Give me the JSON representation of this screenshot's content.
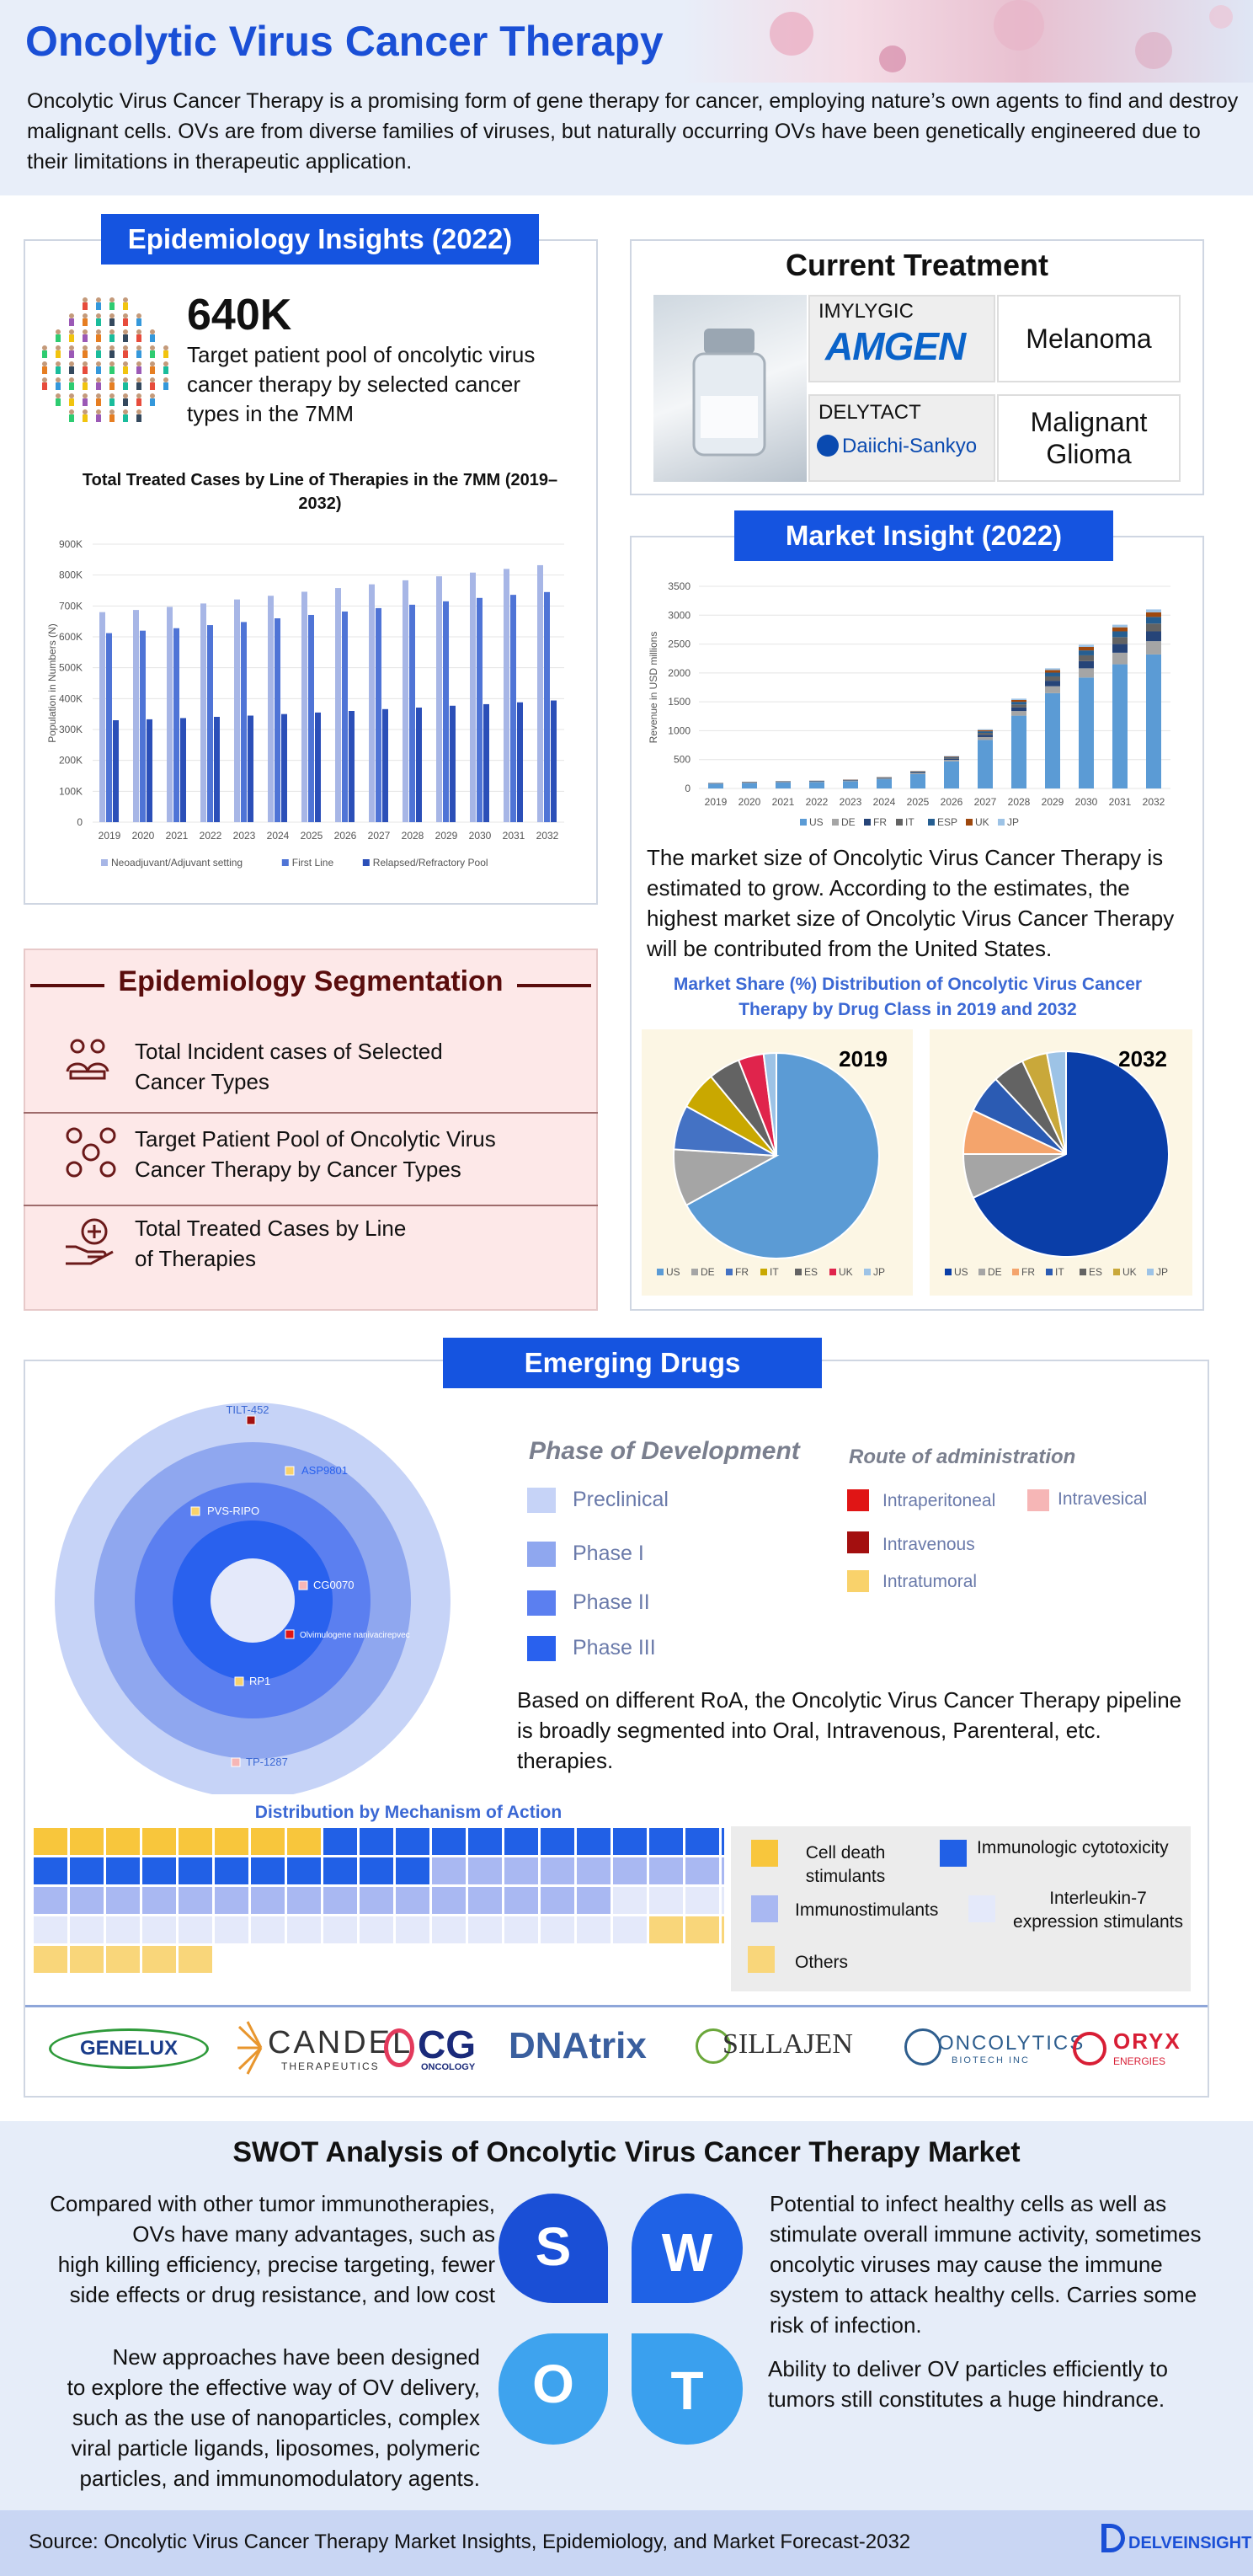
{
  "header": {
    "title": "Oncolytic Virus Cancer Therapy",
    "intro": "Oncolytic Virus Cancer Therapy is a promising form of gene therapy for cancer, employing nature’s own agents to find and destroy malignant cells. OVs are from diverse families of viruses, but naturally occurring OVs have been genetically engineered due to their limitations in therapeutic application."
  },
  "epi": {
    "pill": "Epidemiology Insights (2022)",
    "stat": "640K",
    "stat_desc": "Target patient pool of oncolytic virus cancer therapy by selected cancer types in the 7MM"
  },
  "chart_data": [
    {
      "type": "bar",
      "title": "Total Treated Cases by Line of Therapies in the 7MM (2019–2032)",
      "ylabel": "Population in Numbers (N)",
      "ylim": [
        0,
        900000
      ],
      "yticks": [
        "0",
        "100K",
        "200K",
        "300K",
        "400K",
        "500K",
        "600K",
        "700K",
        "800K",
        "900K"
      ],
      "categories": [
        "2019",
        "2020",
        "2021",
        "2022",
        "2023",
        "2024",
        "2025",
        "2026",
        "2027",
        "2028",
        "2029",
        "2030",
        "2031",
        "2032"
      ],
      "series": [
        {
          "name": "Neoadjuvant/Adjuvant setting",
          "color": "#a7b6e6",
          "values": [
            680000,
            687000,
            697000,
            708000,
            721000,
            733000,
            746000,
            758000,
            770000,
            783000,
            796000,
            808000,
            820000,
            832000
          ]
        },
        {
          "name": "First Line",
          "color": "#4f74d6",
          "values": [
            612000,
            620000,
            628000,
            638000,
            648000,
            660000,
            671000,
            682000,
            693000,
            704000,
            715000,
            726000,
            736000,
            745000
          ]
        },
        {
          "name": "Relapsed/Refractory Pool",
          "color": "#2b4fb8",
          "values": [
            330000,
            333000,
            337000,
            341000,
            345000,
            350000,
            355000,
            360000,
            366000,
            371000,
            377000,
            382000,
            388000,
            394000
          ]
        }
      ]
    },
    {
      "type": "bar",
      "stacked": true,
      "title": "",
      "ylabel": "Revenue in USD millions",
      "ylim": [
        0,
        3500
      ],
      "yticks": [
        "0",
        "500",
        "1000",
        "1500",
        "2000",
        "2500",
        "3000",
        "3500"
      ],
      "categories": [
        "2019",
        "2020",
        "2021",
        "2022",
        "2023",
        "2024",
        "2025",
        "2026",
        "2027",
        "2028",
        "2029",
        "2030",
        "2031",
        "2032"
      ],
      "series": [
        {
          "name": "US",
          "color": "#5b9bd5",
          "values": [
            80,
            95,
            105,
            110,
            125,
            160,
            250,
            470,
            840,
            1260,
            1650,
            1920,
            2150,
            2320
          ]
        },
        {
          "name": "DE",
          "color": "#a5a5a5",
          "values": [
            5,
            6,
            7,
            7,
            8,
            10,
            14,
            25,
            50,
            80,
            120,
            160,
            200,
            230
          ]
        },
        {
          "name": "FR",
          "color": "#264478",
          "values": [
            4,
            5,
            5,
            6,
            6,
            8,
            11,
            20,
            40,
            65,
            95,
            125,
            150,
            170
          ]
        },
        {
          "name": "IT",
          "color": "#636363",
          "values": [
            3,
            4,
            4,
            5,
            5,
            7,
            9,
            16,
            32,
            50,
            75,
            100,
            120,
            135
          ]
        },
        {
          "name": "ESP",
          "color": "#255e91",
          "values": [
            3,
            3,
            4,
            4,
            5,
            6,
            8,
            14,
            28,
            45,
            65,
            85,
            100,
            115
          ]
        },
        {
          "name": "UK",
          "color": "#9e480e",
          "values": [
            2,
            3,
            3,
            3,
            4,
            5,
            6,
            10,
            20,
            32,
            45,
            60,
            70,
            80
          ]
        },
        {
          "name": "JP",
          "color": "#9dc3e6",
          "values": [
            2,
            2,
            2,
            3,
            3,
            4,
            5,
            8,
            15,
            23,
            30,
            38,
            45,
            50
          ]
        }
      ]
    },
    {
      "type": "pie",
      "title": "Market Share (%) Distribution of Oncolytic Virus Cancer Therapy by Drug Class in 2019 and 2032",
      "label": "2019",
      "slices": [
        {
          "name": "US",
          "value": 67,
          "color": "#5b9bd5"
        },
        {
          "name": "DE",
          "value": 9,
          "color": "#a5a5a5"
        },
        {
          "name": "FR",
          "value": 7,
          "color": "#4472c4"
        },
        {
          "name": "IT",
          "value": 6,
          "color": "#c9a800"
        },
        {
          "name": "ES",
          "value": 5,
          "color": "#636363"
        },
        {
          "name": "UK",
          "value": 4,
          "color": "#e0244c"
        },
        {
          "name": "JP",
          "value": 2,
          "color": "#9dc3e6"
        }
      ]
    },
    {
      "type": "pie",
      "label": "2032",
      "slices": [
        {
          "name": "US",
          "value": 68,
          "color": "#0a3ea8"
        },
        {
          "name": "DE",
          "value": 7,
          "color": "#a5a5a5"
        },
        {
          "name": "FR",
          "value": 7,
          "color": "#f4a46c"
        },
        {
          "name": "IT",
          "value": 6,
          "color": "#2b5bb3"
        },
        {
          "name": "ES",
          "value": 5,
          "color": "#636363"
        },
        {
          "name": "UK",
          "value": 4,
          "color": "#c9a83a"
        },
        {
          "name": "JP",
          "value": 3,
          "color": "#9dc3e6"
        }
      ]
    }
  ],
  "treatment": {
    "title": "Current Treatment",
    "drug1": "IMYLYGIC",
    "company1": "AMGEN",
    "indication1": "Melanoma",
    "drug2": "DELYTACT",
    "company2": "Daiichi-Sankyo",
    "indication2a": "Malignant",
    "indication2b": "Glioma"
  },
  "market": {
    "pill": "Market Insight (2022)",
    "text": "The market size of Oncolytic Virus Cancer Therapy is estimated to grow. According to the estimates, the highest market size of Oncolytic Virus Cancer Therapy will be contributed from the United States.",
    "pie_title1": "Market Share (%) Distribution of Oncolytic Virus Cancer",
    "pie_title2": "Therapy by Drug Class in 2019 and 2032"
  },
  "segmentation": {
    "title": "Epidemiology Segmentation",
    "items": [
      {
        "line1": "Total Incident cases of Selected",
        "line2": "Cancer Types"
      },
      {
        "line1": "Target Patient Pool of Oncolytic Virus",
        "line2": "Cancer Therapy by Cancer Types"
      },
      {
        "line1": "Total Treated Cases by Line",
        "line2": "of  Therapies"
      }
    ]
  },
  "emerging": {
    "pill": "Emerging Drugs",
    "drugs": [
      "TILT-452",
      "ASP9801",
      "PVS-RIPO",
      "CG0070",
      "Olvimulogene nanivacirepvec",
      "RP1",
      "TP-1287"
    ],
    "phase_title": "Phase of Development",
    "phases": [
      "Preclinical",
      "Phase I",
      "Phase II",
      "Phase III"
    ],
    "phase_colors": [
      "#c6d3f7",
      "#8fa7ef",
      "#5b7ff0",
      "#2961ee"
    ],
    "route_title": "Route of administration",
    "routes": [
      "Intraperitoneal",
      "Intravesical",
      "Intravenous",
      "Intratumoral"
    ],
    "route_colors": [
      "#e01515",
      "#f6b6b6",
      "#a30f0f",
      "#f9d26b"
    ],
    "roa_text": "Based on different RoA, the Oncolytic Virus Cancer Therapy pipeline is broadly segmented into Oral, Intravenous, Parenteral, etc. therapies.",
    "moa_title": "Distribution by Mechanism of Action",
    "moa": [
      {
        "name": "Cell death stimulants",
        "line1": "Cell death",
        "line2": "stimulants",
        "color": "#f8c63c",
        "count": 8
      },
      {
        "name": "Immunologic cytotoxicity",
        "color": "#2160e6",
        "count": 23
      },
      {
        "name": "Immunostimulants",
        "color": "#a9b8f2",
        "count": 25
      },
      {
        "name": "Interleukin-7 expression stimulants",
        "line1": "Interleukin-7",
        "line2": "expression stimulants",
        "color": "#e4e9fa",
        "count": 21
      },
      {
        "name": "Others",
        "color": "#f9d67a",
        "count": 8
      }
    ]
  },
  "logos": [
    "GENELUX",
    "CANDEL",
    "THERAPEUTICS",
    "CG",
    "ONCOLOGY",
    "DNAtrix",
    "SILLAJEN",
    "ONCOLYTICS",
    "BIOTECH INC",
    "ORYX",
    "ENERGIES"
  ],
  "swot": {
    "title": "SWOT Analysis of Oncolytic Virus Cancer Therapy Market",
    "s_lines": [
      "Compared with other tumor immunotherapies,",
      "OVs have many advantages, such as",
      "high  killing efficiency, precise targeting, fewer",
      "side effects or drug resistance, and low cost"
    ],
    "w_lines": [
      "Potential to infect healthy cells as well as",
      "stimulate overall immune activity, sometimes",
      "oncolytic viruses may cause the immune",
      "system to attack healthy cells. Carries some",
      "risk of infection."
    ],
    "o_lines": [
      "New approaches have been designed",
      "to explore the effective way of OV delivery,",
      "such as the use of nanoparticles, complex",
      "viral particle ligands, liposomes, polymeric",
      "particles, and immunomodulatory agents."
    ],
    "t_lines": [
      "Ability to deliver OV particles efficiently to",
      "tumors still constitutes a huge hindrance."
    ],
    "letters": [
      "S",
      "W",
      "O",
      "T"
    ]
  },
  "footer": {
    "prefix": "Source: ",
    "text": "Oncolytic Virus Cancer Therapy Market Insights, Epidemiology, and Market Forecast-2032",
    "brand": "DELVEINSIGHT"
  }
}
